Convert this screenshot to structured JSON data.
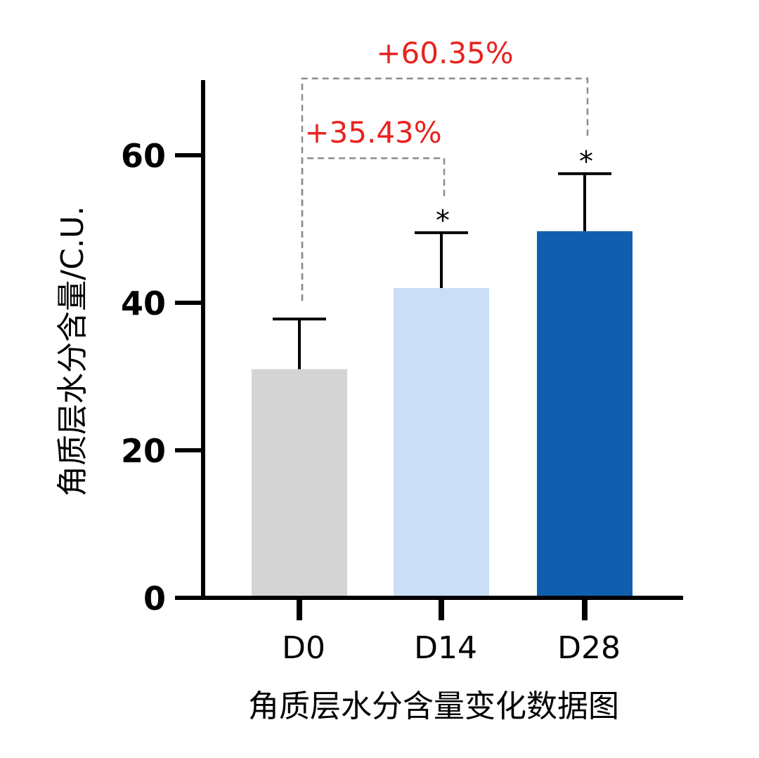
{
  "chart_data": {
    "type": "bar",
    "categories": [
      "D0",
      "D14",
      "D28"
    ],
    "values": [
      31,
      42,
      49.7
    ],
    "errors": [
      6.8,
      7.5,
      7.8
    ],
    "colors": [
      "#d4d4d4",
      "#cadff7",
      "#105eae"
    ],
    "ylabel": "角质层水分含量/C.U.",
    "xlabel": "角质层水分含量变化数据图",
    "ylim": [
      0,
      70
    ],
    "yticks": [
      0,
      20,
      40,
      60
    ],
    "ytick_labels": [
      "0",
      "20",
      "40",
      "60"
    ],
    "significance": [
      "",
      "*",
      "*"
    ],
    "annotations": [
      {
        "text": "+35.43%",
        "from": "D0",
        "to": "D14"
      },
      {
        "text": "+60.35%",
        "from": "D0",
        "to": "D28"
      }
    ],
    "annotation_color": "#e8231f",
    "grid": false,
    "legend": "none"
  }
}
